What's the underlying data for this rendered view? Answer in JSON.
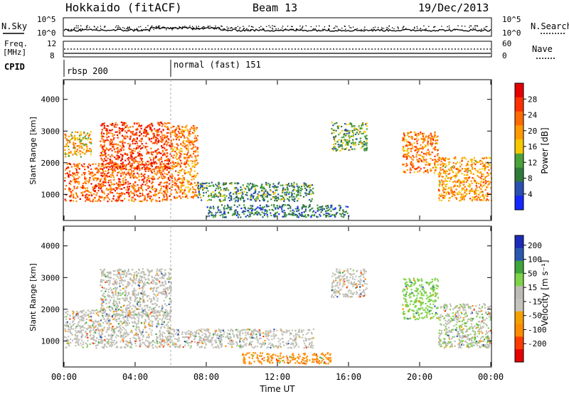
{
  "header": {
    "station": "Hokkaido (fitACF)",
    "beam": "Beam 13",
    "date": "19/Dec/2013"
  },
  "top_panels": {
    "nsky_label": "N.Sky",
    "nsearch_label": "N.Search",
    "nsky_ticks": [
      "10^5",
      "10^0"
    ],
    "nsearch_ticks": [
      "10^5",
      "10^0"
    ],
    "freq_label_1": "Freq.",
    "freq_label_2": "[MHz]",
    "freq_ticks": [
      "12",
      "8"
    ],
    "nave_label": "Nave",
    "nave_ticks": [
      "60",
      "0"
    ],
    "cpid_label": "CPID",
    "cpid_segments": [
      {
        "label": "rbsp 200",
        "start_hour": 0
      },
      {
        "label": "normal (fast) 151",
        "start_hour": 6
      }
    ]
  },
  "colors": {
    "power_scale": [
      "#1428ff",
      "#2a4fb0",
      "#2f7a3a",
      "#4aa23a",
      "#f5c800",
      "#ff9a00",
      "#ff6a00",
      "#ff3000",
      "#e60000"
    ],
    "velocity_scale": [
      "#e60000",
      "#ff3c00",
      "#ff8c00",
      "#f5a000",
      "#c4c4bc",
      "#bcbcb4",
      "#7fd34a",
      "#3da53a",
      "#2a58b0",
      "#1c2cb8"
    ]
  },
  "chart_data": [
    {
      "type": "heatmap",
      "name": "power",
      "ylabel": "Slant Range [km]",
      "yticks": [
        1000,
        2000,
        3000,
        4000
      ],
      "ylim": [
        200,
        4600
      ],
      "xlim": [
        0,
        24
      ],
      "colorbar": {
        "label": "Power [dB]",
        "ticks": [
          4,
          8,
          12,
          16,
          20,
          24,
          28
        ],
        "range": [
          0,
          32
        ]
      },
      "regions": [
        {
          "t0": 0.0,
          "t1": 6.0,
          "r0": 800,
          "r1": 2000,
          "value": 24
        },
        {
          "t0": 2.0,
          "t1": 6.0,
          "r0": 1800,
          "r1": 3300,
          "value": 26
        },
        {
          "t0": 0.0,
          "t1": 1.5,
          "r0": 2200,
          "r1": 3000,
          "value": 18
        },
        {
          "t0": 6.0,
          "t1": 7.5,
          "r0": 900,
          "r1": 3200,
          "value": 22
        },
        {
          "t0": 7.5,
          "t1": 14.0,
          "r0": 800,
          "r1": 1400,
          "value": 10
        },
        {
          "t0": 8.0,
          "t1": 16.0,
          "r0": 300,
          "r1": 700,
          "value": 8
        },
        {
          "t0": 15.0,
          "t1": 17.0,
          "r0": 2400,
          "r1": 3300,
          "value": 12
        },
        {
          "t0": 19.0,
          "t1": 21.0,
          "r0": 1700,
          "r1": 3000,
          "value": 22
        },
        {
          "t0": 21.0,
          "t1": 24.0,
          "r0": 800,
          "r1": 2200,
          "value": 20
        }
      ]
    },
    {
      "type": "heatmap",
      "name": "velocity",
      "ylabel": "Slant Range [km]",
      "yticks": [
        1000,
        2000,
        3000,
        4000
      ],
      "ylim": [
        200,
        4600
      ],
      "xlim": [
        0,
        24
      ],
      "xticks": [
        "00:00",
        "04:00",
        "08:00",
        "12:00",
        "16:00",
        "20:00",
        "00:00"
      ],
      "xlabel": "Time UT",
      "colorbar": {
        "label": "Velocity [m s⁻¹]",
        "ticks": [
          200,
          100,
          50,
          15,
          -15,
          -50,
          -100,
          -200
        ],
        "range": [
          -250,
          250
        ]
      },
      "regions": [
        {
          "t0": 0.0,
          "t1": 6.0,
          "r0": 800,
          "r1": 2000,
          "value": 0
        },
        {
          "t0": 2.0,
          "t1": 6.0,
          "r0": 1800,
          "r1": 3300,
          "value": 5
        },
        {
          "t0": 6.0,
          "t1": 14.0,
          "r0": 800,
          "r1": 1400,
          "value": 0
        },
        {
          "t0": 10.0,
          "t1": 15.0,
          "r0": 300,
          "r1": 650,
          "value": -70
        },
        {
          "t0": 15.0,
          "t1": 17.0,
          "r0": 2400,
          "r1": 3300,
          "value": 0
        },
        {
          "t0": 19.0,
          "t1": 21.0,
          "r0": 1700,
          "r1": 3000,
          "value": 40
        },
        {
          "t0": 21.0,
          "t1": 24.0,
          "r0": 800,
          "r1": 2200,
          "value": 10
        }
      ]
    }
  ]
}
